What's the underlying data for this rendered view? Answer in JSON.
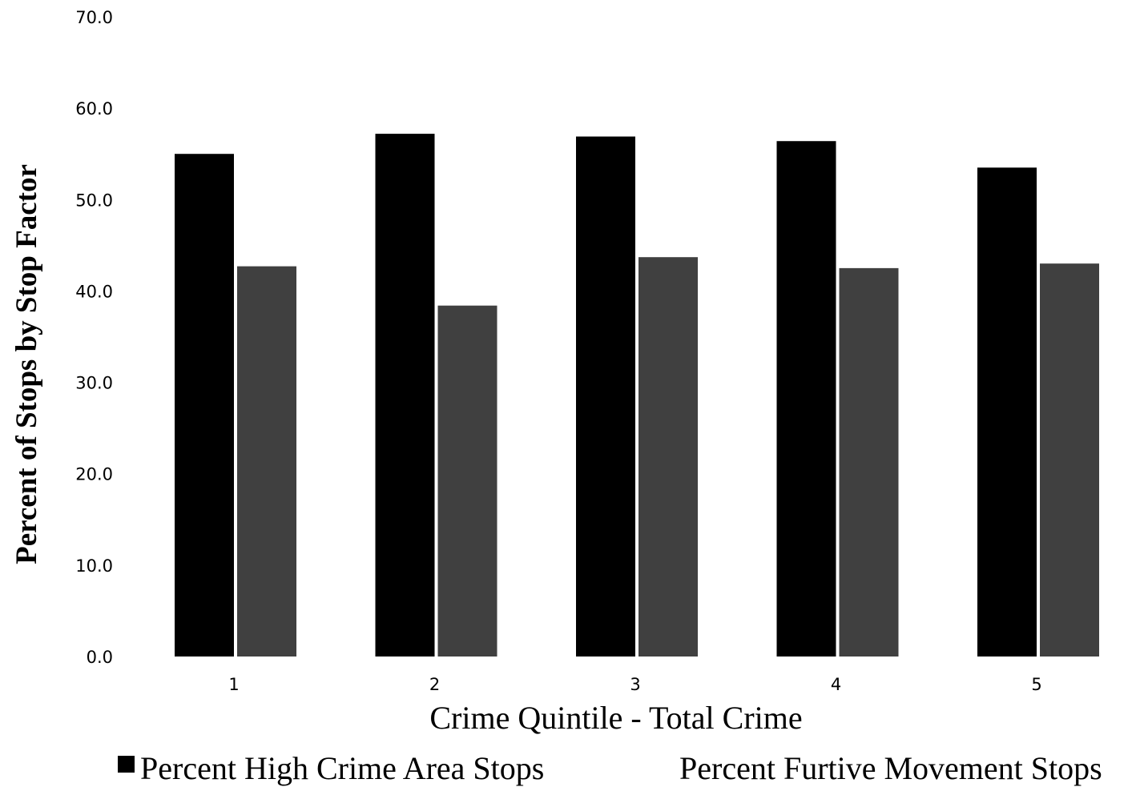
{
  "chart_data": {
    "type": "bar",
    "xlabel": "Crime Quintile - Total Crime",
    "ylabel": "Percent of Stops by Stop Factor",
    "categories": [
      "1",
      "2",
      "3",
      "4",
      "5"
    ],
    "ylim": [
      0,
      70
    ],
    "yticks": [
      "0.0",
      "10.0",
      "20.0",
      "30.0",
      "40.0",
      "50.0",
      "60.0",
      "70.0"
    ],
    "grid": false,
    "legend_position": "bottom",
    "series": [
      {
        "name": "Percent High Crime Area Stops",
        "color": "#000000",
        "values": [
          55.0,
          57.2,
          56.9,
          56.4,
          53.5
        ]
      },
      {
        "name": "Percent Furtive Movement Stops",
        "color": "#404040",
        "values": [
          42.7,
          38.4,
          43.7,
          42.5,
          43.0
        ]
      }
    ]
  }
}
